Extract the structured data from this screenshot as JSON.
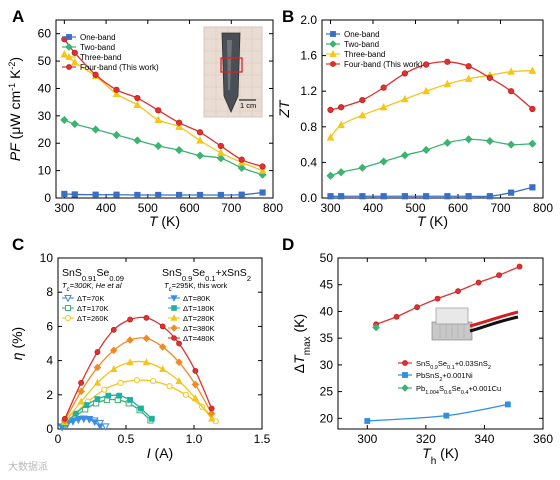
{
  "panels": {
    "A": {
      "label": "A",
      "chart_data": {
        "type": "line",
        "xlabel": "T (K)",
        "ylabel": "PF (μW cm⁻¹ K⁻²)",
        "xlim": [
          280,
          800
        ],
        "ylim": [
          0,
          65
        ],
        "xticks": [
          300,
          400,
          500,
          600,
          700,
          800
        ],
        "yticks": [
          0,
          10,
          20,
          30,
          40,
          50,
          60
        ],
        "legend_position": "top-left",
        "series": [
          {
            "name": "One-band",
            "color": "#3a6fc4",
            "marker": "square",
            "x": [
              300,
              325,
              375,
              425,
              475,
              525,
              575,
              625,
              675,
              725,
              775
            ],
            "y": [
              1.5,
              1.3,
              1.2,
              1.2,
              1.1,
              1.1,
              1.1,
              1.1,
              1.1,
              1.2,
              2.0
            ]
          },
          {
            "name": "Two-band",
            "color": "#3cb371",
            "marker": "diamond",
            "x": [
              300,
              325,
              375,
              425,
              475,
              525,
              575,
              625,
              675,
              725,
              775
            ],
            "y": [
              28.5,
              27.0,
              25.0,
              23.0,
              21.0,
              19.0,
              17.5,
              15.5,
              14.5,
              11.0,
              8.5
            ]
          },
          {
            "name": "Three-band",
            "color": "#f5c518",
            "marker": "triangle",
            "x": [
              300,
              325,
              375,
              425,
              475,
              525,
              575,
              625,
              675,
              725,
              775
            ],
            "y": [
              52.5,
              49.5,
              44.5,
              38.0,
              34.0,
              28.5,
              26.0,
              21.0,
              16.5,
              13.0,
              10.0
            ]
          },
          {
            "name": "Four-band (This work)",
            "color": "#e03030",
            "marker": "circle",
            "x": [
              300,
              325,
              375,
              425,
              475,
              525,
              575,
              625,
              675,
              725,
              775
            ],
            "y": [
              58.0,
              53.0,
              45.0,
              39.5,
              36.5,
              32.0,
              27.5,
              24.0,
              19.0,
              14.0,
              11.5
            ]
          }
        ]
      },
      "inset": {
        "scale_text": "1 cm"
      }
    },
    "B": {
      "label": "B",
      "chart_data": {
        "type": "line",
        "xlabel": "T (K)",
        "ylabel": "ZT",
        "xlim": [
          280,
          800
        ],
        "ylim": [
          0,
          2.0
        ],
        "xticks": [
          300,
          400,
          500,
          600,
          700,
          800
        ],
        "yticks": [
          0.0,
          0.4,
          0.8,
          1.2,
          1.6,
          2.0
        ],
        "legend_position": "top-left",
        "series": [
          {
            "name": "One-band",
            "color": "#3a6fc4",
            "marker": "square",
            "x": [
              300,
              325,
              375,
              425,
              475,
              525,
              575,
              625,
              675,
              725,
              775
            ],
            "y": [
              0.02,
              0.02,
              0.02,
              0.02,
              0.02,
              0.02,
              0.02,
              0.02,
              0.02,
              0.06,
              0.12
            ]
          },
          {
            "name": "Two-band",
            "color": "#3cb371",
            "marker": "diamond",
            "x": [
              300,
              325,
              375,
              425,
              475,
              525,
              575,
              625,
              675,
              725,
              775
            ],
            "y": [
              0.25,
              0.29,
              0.34,
              0.41,
              0.48,
              0.54,
              0.62,
              0.66,
              0.64,
              0.6,
              0.61
            ]
          },
          {
            "name": "Three-band",
            "color": "#f5c518",
            "marker": "triangle",
            "x": [
              300,
              325,
              375,
              425,
              475,
              525,
              575,
              625,
              675,
              725,
              775
            ],
            "y": [
              0.68,
              0.82,
              0.93,
              1.02,
              1.11,
              1.2,
              1.28,
              1.34,
              1.38,
              1.42,
              1.43
            ]
          },
          {
            "name": "Four-band (This work)",
            "color": "#e03030",
            "marker": "circle",
            "x": [
              300,
              325,
              375,
              425,
              475,
              525,
              575,
              625,
              675,
              725,
              775
            ],
            "y": [
              0.99,
              1.02,
              1.1,
              1.24,
              1.4,
              1.5,
              1.53,
              1.48,
              1.35,
              1.2,
              1.0
            ]
          }
        ]
      }
    },
    "C": {
      "label": "C",
      "chart_data": {
        "type": "line",
        "xlabel": "I (A)",
        "ylabel": "η (%)",
        "xlim": [
          0,
          1.5
        ],
        "ylim": [
          0,
          10
        ],
        "xticks": [
          0,
          0.5,
          1.0,
          1.5
        ],
        "yticks": [
          0,
          2,
          4,
          6,
          8,
          10
        ],
        "legend_left_title": "SnS0.91Se0.09",
        "legend_left_subtitle": "Tc=300K, He et al",
        "legend_right_title": "SnS0.9Se0.1+xSnS2",
        "legend_right_subtitle": "Tc=295K, this work",
        "series": [
          {
            "name": "ΔT=70K",
            "group": "He",
            "color": "#3a8ee6",
            "marker": "open-triangle-down",
            "x": [
              0.03,
              0.07,
              0.11,
              0.15,
              0.19,
              0.23,
              0.27,
              0.31,
              0.35
            ],
            "y": [
              0.1,
              0.3,
              0.45,
              0.55,
              0.6,
              0.58,
              0.5,
              0.35,
              0.15
            ]
          },
          {
            "name": "ΔT=170K",
            "group": "He",
            "color": "#3cb371",
            "marker": "open-square",
            "x": [
              0.05,
              0.12,
              0.2,
              0.28,
              0.36,
              0.44,
              0.52,
              0.6,
              0.68
            ],
            "y": [
              0.25,
              0.7,
              1.15,
              1.5,
              1.7,
              1.7,
              1.5,
              1.1,
              0.5
            ]
          },
          {
            "name": "ΔT=260K",
            "group": "He",
            "color": "#f5c518",
            "marker": "open-circle",
            "x": [
              0.1,
              0.22,
              0.34,
              0.46,
              0.58,
              0.7,
              0.82,
              0.94,
              1.06,
              1.16
            ],
            "y": [
              0.7,
              1.6,
              2.3,
              2.7,
              2.85,
              2.8,
              2.5,
              2.0,
              1.3,
              0.45
            ]
          },
          {
            "name": "ΔT=80K",
            "group": "this",
            "color": "#3a8ee6",
            "marker": "triangle-down",
            "x": [
              0.03,
              0.07,
              0.11,
              0.15,
              0.19,
              0.23,
              0.27,
              0.31
            ],
            "y": [
              0.15,
              0.35,
              0.5,
              0.6,
              0.62,
              0.55,
              0.4,
              0.15
            ]
          },
          {
            "name": "ΔT=180K",
            "group": "this",
            "color": "#20b0a0",
            "marker": "square",
            "x": [
              0.05,
              0.13,
              0.21,
              0.29,
              0.37,
              0.45,
              0.53,
              0.61,
              0.69
            ],
            "y": [
              0.3,
              0.9,
              1.4,
              1.75,
              1.95,
              1.95,
              1.7,
              1.2,
              0.6
            ]
          },
          {
            "name": "ΔT=280K",
            "group": "this",
            "color": "#f5c518",
            "marker": "triangle",
            "x": [
              0.05,
              0.17,
              0.29,
              0.41,
              0.53,
              0.65,
              0.77,
              0.89,
              1.01,
              1.13
            ],
            "y": [
              0.4,
              1.6,
              2.7,
              3.5,
              3.9,
              3.9,
              3.5,
              2.8,
              1.8,
              0.6
            ]
          },
          {
            "name": "ΔT=380K",
            "group": "this",
            "color": "#f08a24",
            "marker": "diamond",
            "x": [
              0.05,
              0.17,
              0.29,
              0.41,
              0.53,
              0.65,
              0.77,
              0.89,
              1.01,
              1.13
            ],
            "y": [
              0.5,
              2.2,
              3.6,
              4.6,
              5.2,
              5.3,
              4.8,
              3.9,
              2.6,
              0.9
            ]
          },
          {
            "name": "ΔT=480K",
            "group": "this",
            "color": "#e03030",
            "marker": "circle",
            "x": [
              0.05,
              0.17,
              0.29,
              0.41,
              0.53,
              0.65,
              0.77,
              0.89,
              1.01,
              1.13
            ],
            "y": [
              0.6,
              2.7,
              4.5,
              5.8,
              6.4,
              6.5,
              6.0,
              5.0,
              3.4,
              1.2
            ]
          }
        ]
      }
    },
    "D": {
      "label": "D",
      "chart_data": {
        "type": "line",
        "xlabel": "Th (K)",
        "ylabel": "ΔTmax (K)",
        "xlim": [
          290,
          360
        ],
        "ylim": [
          18,
          50
        ],
        "xticks": [
          300,
          320,
          340,
          360
        ],
        "yticks": [
          20,
          25,
          30,
          35,
          40,
          45,
          50
        ],
        "legend_position": "lower-right",
        "series": [
          {
            "name": "SnS0.9Se0.1+0.03SnS2",
            "color": "#e03030",
            "marker": "circle",
            "x": [
              303,
              310,
              317,
              324,
              331,
              338,
              345,
              352
            ],
            "y": [
              37.6,
              39.0,
              40.8,
              42.4,
              43.8,
              45.4,
              46.8,
              48.4
            ]
          },
          {
            "name": "PbSnS2+0.001Ni",
            "color": "#2f8fe0",
            "marker": "square",
            "x": [
              300,
              327,
              348
            ],
            "y": [
              19.5,
              20.5,
              22.6
            ]
          },
          {
            "name": "Pb1.004S0.6Se0.4+0.001Cu",
            "color": "#3cb371",
            "marker": "diamond",
            "x": [
              303
            ],
            "y": [
              37.0
            ]
          }
        ]
      }
    }
  },
  "watermark": "大数据派"
}
